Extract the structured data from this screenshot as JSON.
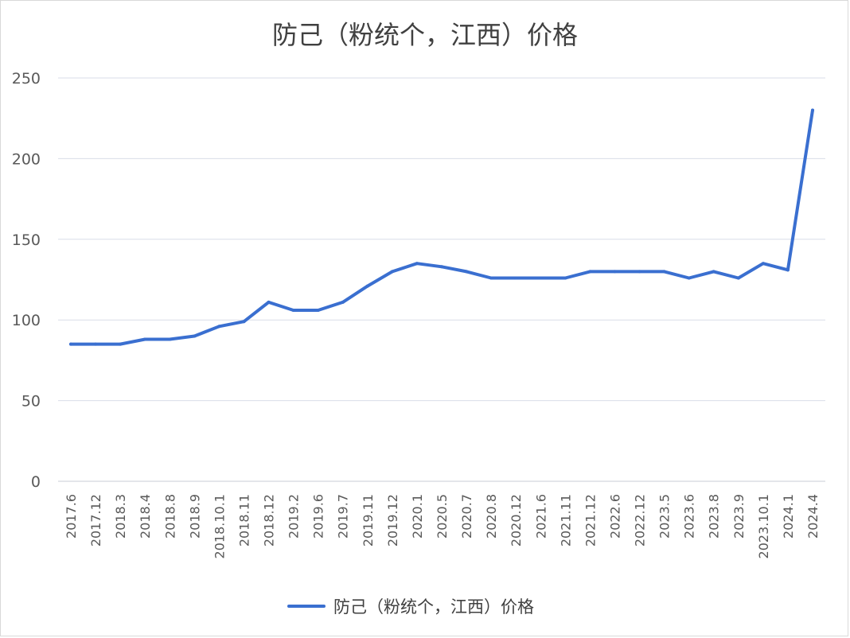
{
  "chart_data": {
    "type": "line",
    "title": "防己（粉统个，江西）价格",
    "categories": [
      "2017.6",
      "2017.12",
      "2018.3",
      "2018.4",
      "2018.8",
      "2018.9",
      "2018.10.1",
      "2018.11",
      "2018.12",
      "2019.2",
      "2019.6",
      "2019.7",
      "2019.11",
      "2019.12",
      "2020.1",
      "2020.5",
      "2020.7",
      "2020.8",
      "2020.12",
      "2021.6",
      "2021.11",
      "2021.12",
      "2022.6",
      "2022.12",
      "2023.5",
      "2023.6",
      "2023.8",
      "2023.9",
      "2023.10.1",
      "2024.1",
      "2024.4"
    ],
    "series": [
      {
        "name": "防己（粉统个，江西）价格",
        "color": "#3a6fd0",
        "values": [
          85,
          85,
          85,
          88,
          88,
          90,
          96,
          99,
          111,
          106,
          106,
          111,
          121,
          130,
          135,
          133,
          130,
          126,
          126,
          126,
          126,
          130,
          130,
          130,
          130,
          126,
          130,
          126,
          135,
          131,
          230
        ]
      }
    ],
    "y_ticks": [
      "0",
      "50",
      "100",
      "150",
      "200",
      "250"
    ],
    "ylim": [
      0,
      250
    ],
    "grid": true,
    "legend": "bottom"
  }
}
